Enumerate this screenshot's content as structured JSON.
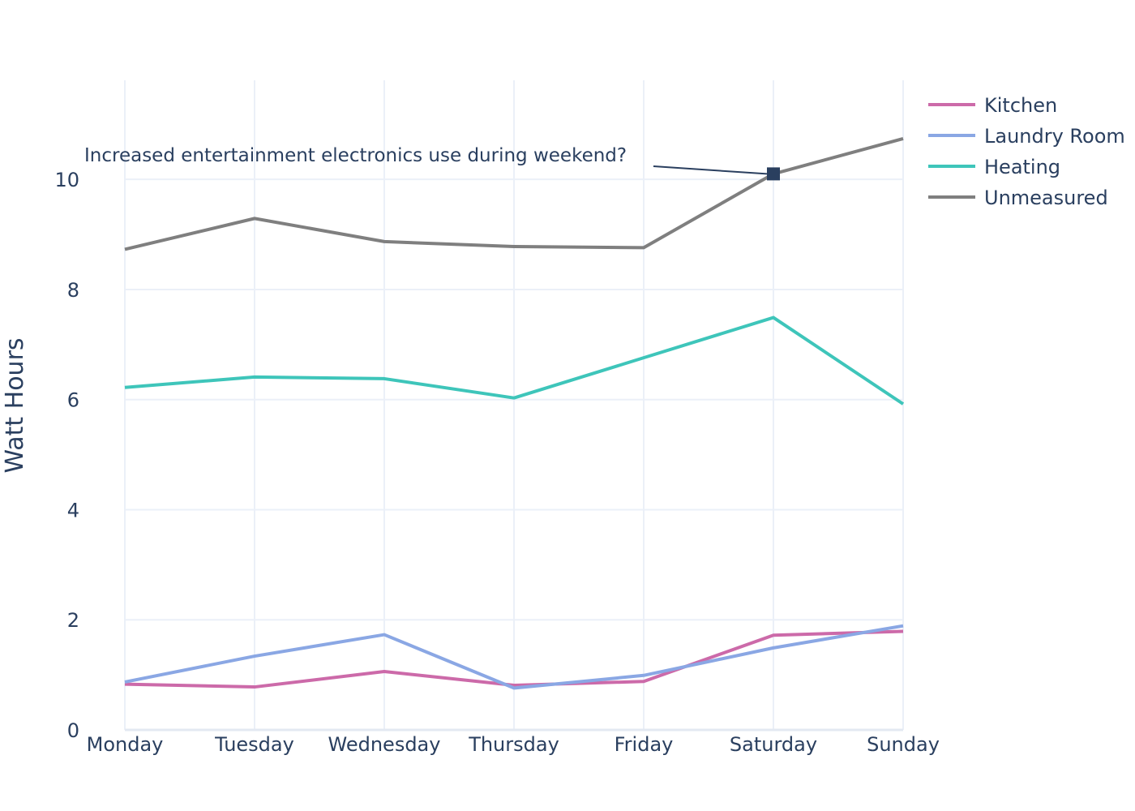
{
  "chart_data": {
    "type": "line",
    "categories": [
      "Monday",
      "Tuesday",
      "Wednesday",
      "Thursday",
      "Friday",
      "Saturday",
      "Sunday"
    ],
    "ylabel": "Watt Hours",
    "xlabel": "",
    "ylim": [
      0,
      11.8
    ],
    "yticks": [
      0,
      2,
      4,
      6,
      8,
      10
    ],
    "grid": true,
    "legend_position": "top-right",
    "series": [
      {
        "name": "Kitchen",
        "color": "#cc6aa9",
        "values": [
          0.83,
          0.78,
          1.06,
          0.81,
          0.88,
          1.72,
          1.79
        ]
      },
      {
        "name": "Laundry Room",
        "color": "#8aa7e4",
        "values": [
          0.87,
          1.34,
          1.73,
          0.76,
          0.99,
          1.49,
          1.89
        ]
      },
      {
        "name": "Heating",
        "color": "#3ec5ba",
        "values": [
          6.22,
          6.41,
          6.38,
          6.03,
          6.76,
          7.49,
          5.92
        ]
      },
      {
        "name": "Unmeasured",
        "color": "#7f7f7f",
        "values": [
          8.73,
          9.29,
          8.87,
          8.78,
          8.76,
          10.1,
          10.74
        ]
      }
    ],
    "annotation": {
      "text": "Increased entertainment electronics use during weekend?",
      "category": "Saturday",
      "value": 10.1,
      "marker_color": "#2a3f5f"
    }
  }
}
